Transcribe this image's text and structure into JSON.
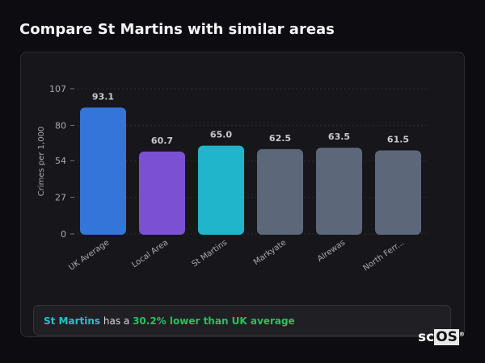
{
  "header": {
    "title": "Compare St Martins with similar areas"
  },
  "chart_data": {
    "type": "bar",
    "ylabel": "Crimes per 1,000",
    "ylim": [
      0,
      107
    ],
    "yticks": [
      0,
      27,
      54,
      80,
      107
    ],
    "grid": true,
    "categories": [
      "UK Average",
      "Local Area",
      "St Martins",
      "Markyate",
      "Alrewas",
      "North Ferr..."
    ],
    "values": [
      93.1,
      60.7,
      65.0,
      62.5,
      63.5,
      61.5
    ],
    "value_labels": [
      "93.1",
      "60.7",
      "65.0",
      "62.5",
      "63.5",
      "61.5"
    ],
    "colors": [
      "#3375d8",
      "#7b50d3",
      "#21b5cc",
      "#5c677a",
      "#5c677a",
      "#5c677a"
    ]
  },
  "summary": {
    "area": "St Martins",
    "middle": " has a ",
    "highlight": "30.2% lower than UK average"
  },
  "logo": {
    "text_sc": "sc",
    "text_os": "OS",
    "mark": "®"
  }
}
